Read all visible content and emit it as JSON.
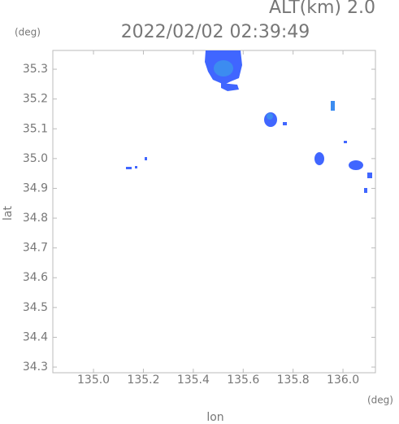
{
  "chart_data": {
    "type": "map",
    "title": "2022/02/02 02:39:49",
    "subtitle": "ALT(km) 2.0",
    "x_label": "lon",
    "y_label": "lat",
    "x_unit": "(deg)",
    "y_unit": "(deg)",
    "xlim": [
      134.837,
      136.13
    ],
    "ylim": [
      34.281,
      35.363
    ],
    "xticks": [
      {
        "value": 135.0,
        "label": "135.0"
      },
      135.2,
      135.4,
      135.6,
      135.8,
      {
        "value": 136.0,
        "label": "136.0"
      }
    ],
    "yticks": [
      35.3,
      35.2,
      35.1,
      {
        "value": 35.0,
        "label": "35.0"
      },
      34.9,
      34.8,
      34.7,
      34.6,
      34.5,
      34.4,
      34.3
    ]
  }
}
